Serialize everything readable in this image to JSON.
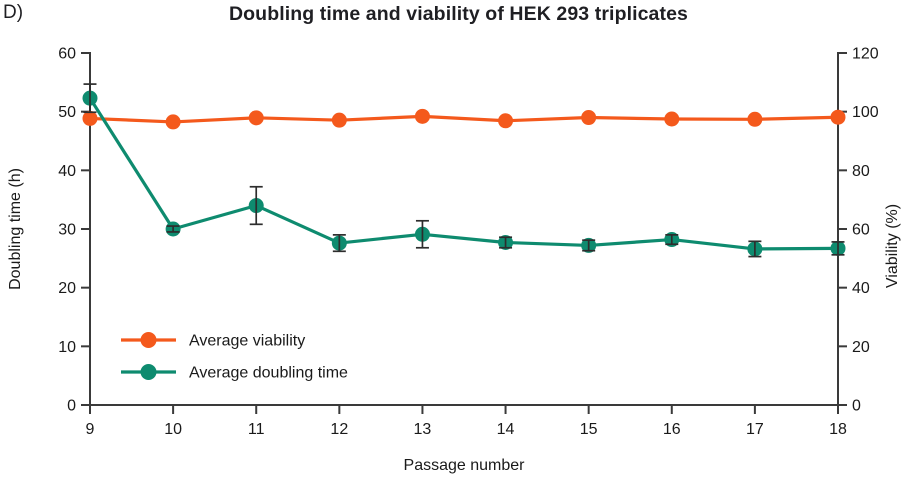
{
  "figure": {
    "panel_label": "D)",
    "background_color": "#ffffff"
  },
  "chart_data": {
    "type": "line",
    "title": "Doubling time and viability of HEK 293 triplicates",
    "xlabel": "Passage number",
    "ylabel_left": "Doubling time (h)",
    "ylabel_right": "Viability (%)",
    "x": [
      9,
      10,
      11,
      12,
      13,
      14,
      15,
      16,
      17,
      18
    ],
    "x_tick_labels": [
      "9",
      "10",
      "11",
      "12",
      "13",
      "14",
      "15",
      "16",
      "17",
      "18"
    ],
    "left_axis": {
      "min": 0,
      "max": 60,
      "ticks": [
        0,
        10,
        20,
        30,
        40,
        50,
        60
      ]
    },
    "right_axis": {
      "min": 0,
      "max": 120,
      "ticks": [
        0,
        20,
        40,
        60,
        80,
        100,
        120
      ]
    },
    "grid": false,
    "legend_position": "lower-left-inside",
    "series": [
      {
        "name": "Average viability",
        "axis": "right",
        "color": "#F4591C",
        "marker": "circle",
        "values": [
          97.7,
          96.5,
          97.9,
          97.1,
          98.4,
          96.9,
          98.0,
          97.5,
          97.4,
          98.1
        ]
      },
      {
        "name": "Average doubling time",
        "axis": "left",
        "color": "#0E8B6F",
        "marker": "circle",
        "values": [
          52.3,
          30.0,
          34.0,
          27.6,
          29.1,
          27.7,
          27.2,
          28.2,
          26.6,
          26.7
        ],
        "error": [
          2.4,
          0.5,
          3.2,
          1.4,
          2.3,
          0.9,
          0.9,
          0.8,
          1.3,
          1.1
        ]
      }
    ],
    "colors": {
      "axis": "#3A3A3A",
      "text": "#1A1A1A",
      "errorbar": "#2D2D2D"
    }
  }
}
